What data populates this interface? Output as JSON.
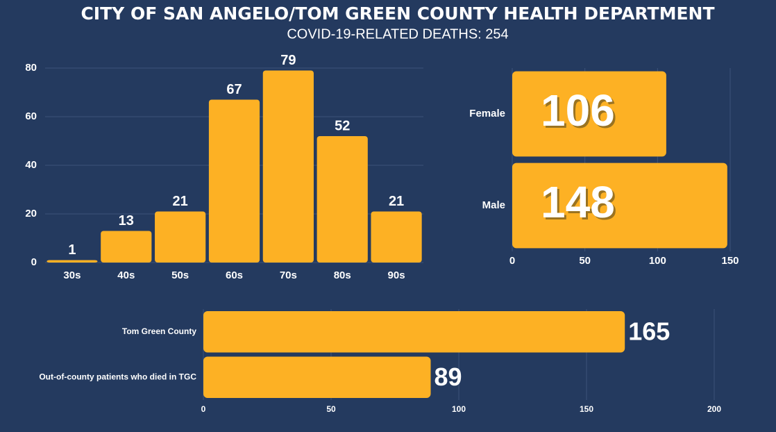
{
  "header": {
    "title": "CITY OF SAN ANGELO/TOM GREEN COUNTY HEALTH DEPARTMENT",
    "subtitle": "COVID-19-RELATED DEATHS: 254"
  },
  "chart_data": [
    {
      "type": "bar",
      "categories": [
        "30s",
        "40s",
        "50s",
        "60s",
        "70s",
        "80s",
        "90s"
      ],
      "values": [
        1,
        13,
        21,
        67,
        79,
        52,
        21
      ],
      "color": "#fdb124",
      "ylim": [
        0,
        80
      ],
      "yticks": [
        0,
        20,
        40,
        60,
        80
      ],
      "grid": true
    },
    {
      "type": "barh",
      "categories": [
        "Female",
        "Male"
      ],
      "values": [
        106,
        148
      ],
      "color": "#fdb124",
      "xlim": [
        0,
        150
      ],
      "xticks": [
        0,
        50,
        100,
        150
      ],
      "grid": true
    },
    {
      "type": "barh",
      "categories": [
        "Tom Green County",
        "Out-of-county patients who died in TGC"
      ],
      "values": [
        165,
        89
      ],
      "color": "#fdb124",
      "xlim": [
        0,
        200
      ],
      "xticks": [
        0,
        50,
        100,
        150,
        200
      ],
      "grid": true
    }
  ]
}
